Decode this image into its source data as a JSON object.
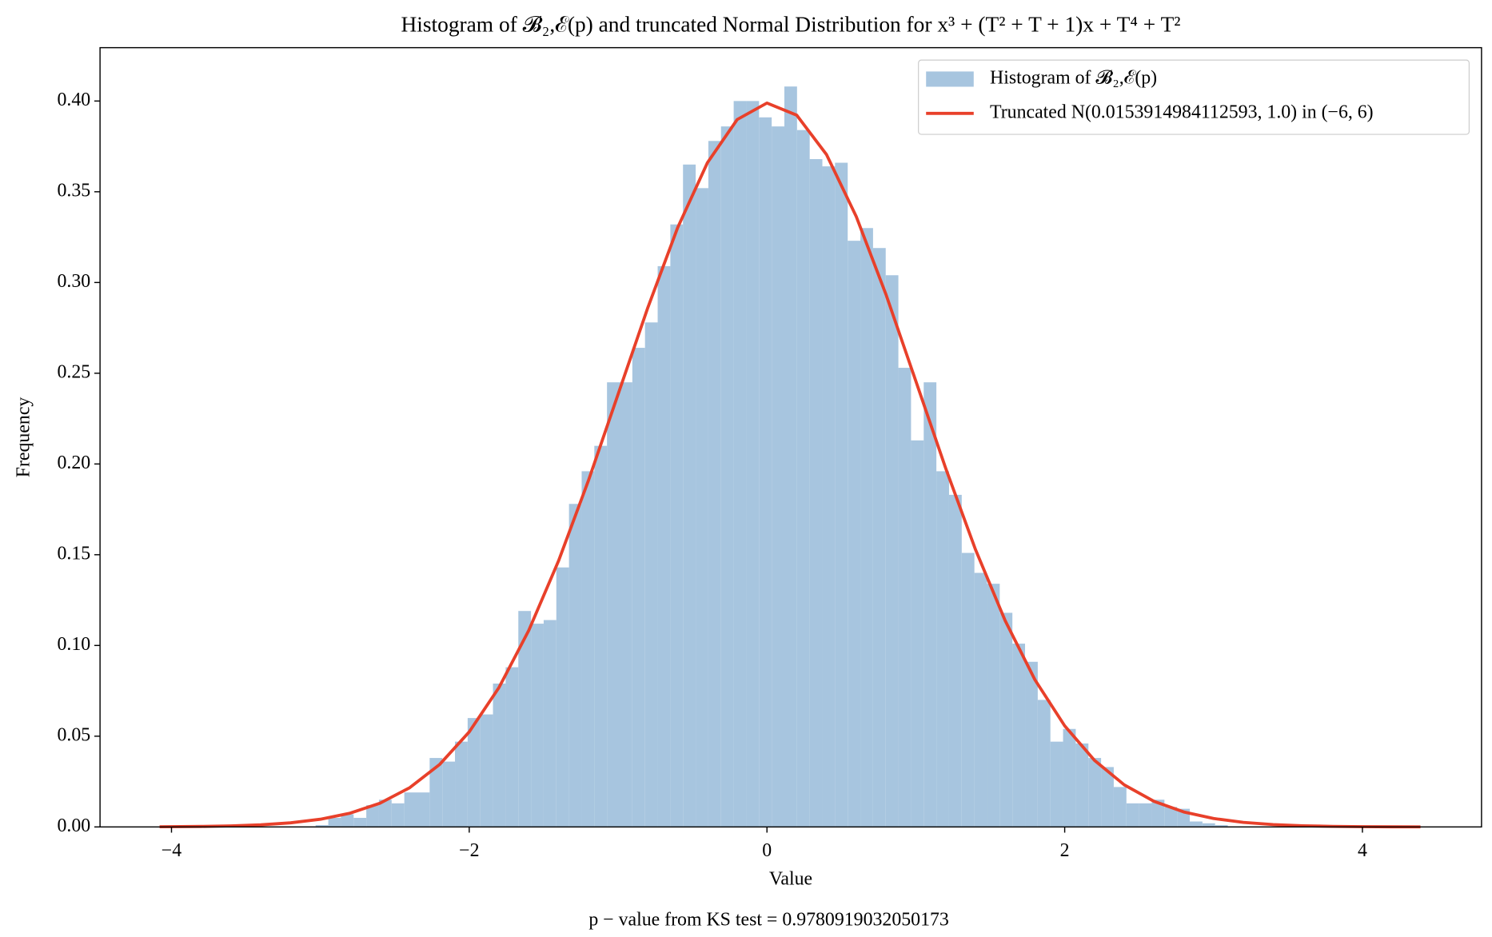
{
  "chart_data": {
    "type": "histogram",
    "title": "Histogram of 𝓑₂,ℰ(p) and truncated Normal Distribution for x³ + (T² + T + 1)x + T⁴ + T²",
    "x_label": "Value",
    "y_label": "Frequency",
    "annotation": "p − value from KS test  = 0.9780919032050173",
    "xlim": [
      -4.48,
      4.8
    ],
    "ylim": [
      0,
      0.4294
    ],
    "xticks": [
      {
        "value": -4,
        "label": "−4"
      },
      {
        "value": -2,
        "label": "−2"
      },
      0,
      2,
      4
    ],
    "yticks": [
      {
        "value": 0,
        "label": "0.00"
      },
      {
        "value": 0.05,
        "label": "0.05"
      },
      {
        "value": 0.1,
        "label": "0.10"
      },
      {
        "value": 0.15,
        "label": "0.15"
      },
      {
        "value": 0.2,
        "label": "0.20"
      },
      {
        "value": 0.25,
        "label": "0.25"
      },
      {
        "value": 0.3,
        "label": "0.30"
      },
      {
        "value": 0.35,
        "label": "0.35"
      },
      {
        "value": 0.4,
        "label": "0.40"
      }
    ],
    "grid": false,
    "legend": "upper right",
    "bins": [
      -4.053,
      -3.9679,
      -3.8828,
      -3.7977,
      -3.7126,
      -3.6275,
      -3.5424,
      -3.4573,
      -3.3722,
      -3.2871,
      -3.202,
      -3.1169,
      -3.0318,
      -2.9467,
      -2.8616,
      -2.7765,
      -2.6914,
      -2.6063,
      -2.5212,
      -2.4361,
      -2.351,
      -2.2659,
      -2.1808,
      -2.0957,
      -2.0106,
      -1.9255,
      -1.8404,
      -1.7553,
      -1.6702,
      -1.5851,
      -1.5,
      -1.4149,
      -1.3298,
      -1.2447,
      -1.1596,
      -1.0745,
      -0.9894,
      -0.9043,
      -0.8192,
      -0.7341,
      -0.649,
      -0.5639,
      -0.4788,
      -0.3937,
      -0.3086,
      -0.2235,
      -0.1384,
      -0.0533,
      0.0318,
      0.1169,
      0.202,
      0.2871,
      0.3722,
      0.4573,
      0.5424,
      0.6275,
      0.7126,
      0.7977,
      0.8828,
      0.9679,
      1.053,
      1.1381,
      1.2232,
      1.3083,
      1.3934,
      1.4785,
      1.5636,
      1.6487,
      1.7338,
      1.8189,
      1.904,
      1.9891,
      2.0742,
      2.1593,
      2.2444,
      2.3295,
      2.4146,
      2.4997,
      2.5848,
      2.6699,
      2.755,
      2.8401,
      2.9252,
      3.0103,
      3.0954,
      3.1805,
      3.2656,
      3.3507,
      3.4358,
      3.5209,
      3.606,
      3.6911,
      3.7762,
      3.8613,
      3.9464,
      4.0315,
      4.1166,
      4.2017,
      4.2868,
      4.3719,
      4.457
    ],
    "series": [
      {
        "name": "Histogram of 𝓑₂,ℰ(p)",
        "type": "histogram",
        "color": "#a7c5df",
        "values": [
          0,
          0,
          0,
          0,
          0,
          0,
          0,
          0,
          0,
          0,
          0,
          0,
          0.001,
          0.005,
          0.007,
          0.005,
          0.012,
          0.015,
          0.013,
          0.019,
          0.019,
          0.038,
          0.036,
          0.047,
          0.06,
          0.062,
          0.079,
          0.088,
          0.119,
          0.112,
          0.114,
          0.143,
          0.178,
          0.196,
          0.21,
          0.245,
          0.245,
          0.264,
          0.278,
          0.309,
          0.332,
          0.365,
          0.352,
          0.378,
          0.386,
          0.4,
          0.4,
          0.391,
          0.386,
          0.408,
          0.384,
          0.368,
          0.364,
          0.366,
          0.323,
          0.33,
          0.319,
          0.304,
          0.253,
          0.213,
          0.245,
          0.196,
          0.183,
          0.151,
          0.14,
          0.134,
          0.118,
          0.101,
          0.091,
          0.07,
          0.047,
          0.054,
          0.046,
          0.038,
          0.033,
          0.022,
          0.013,
          0.013,
          0.015,
          0.011,
          0.01,
          0.003,
          0.002,
          0.001,
          0,
          0,
          0,
          0,
          0,
          0,
          0,
          0,
          0,
          0,
          0,
          0,
          0,
          0,
          0,
          0
        ]
      },
      {
        "name": "Truncated N(0.0153914984112593, 1.0) in (−6, 6)",
        "type": "line",
        "color": "#e8402a",
        "x": [
          -4.08,
          -3.8,
          -3.6,
          -3.4,
          -3.2,
          -3.0,
          -2.8,
          -2.6,
          -2.4,
          -2.2,
          -2.0,
          -1.8,
          -1.6,
          -1.4,
          -1.2,
          -1.0,
          -0.8,
          -0.6,
          -0.4,
          -0.2,
          0.0,
          0.2,
          0.4,
          0.6,
          0.8,
          1.0,
          1.2,
          1.4,
          1.6,
          1.8,
          2.0,
          2.2,
          2.4,
          2.6,
          2.8,
          3.0,
          3.2,
          3.4,
          3.6,
          3.8,
          4.0,
          4.2,
          4.39
        ],
        "values": [
          9.1e-05,
          0.000275,
          0.000579,
          0.00117,
          0.00227,
          0.00424,
          0.00759,
          0.01306,
          0.02161,
          0.03432,
          0.05239,
          0.07683,
          0.1083,
          0.1466,
          0.1907,
          0.2384,
          0.2862,
          0.3302,
          0.366,
          0.3898,
          0.3989,
          0.3922,
          0.3705,
          0.3363,
          0.2933,
          0.2457,
          0.1978,
          0.153,
          0.1137,
          0.0811,
          0.0557,
          0.0367,
          0.0232,
          0.0141,
          0.00826,
          0.00464,
          0.00251,
          0.0013,
          0.000646,
          0.000309,
          0.000142,
          6.3e-05,
          2.8e-05
        ]
      }
    ]
  }
}
